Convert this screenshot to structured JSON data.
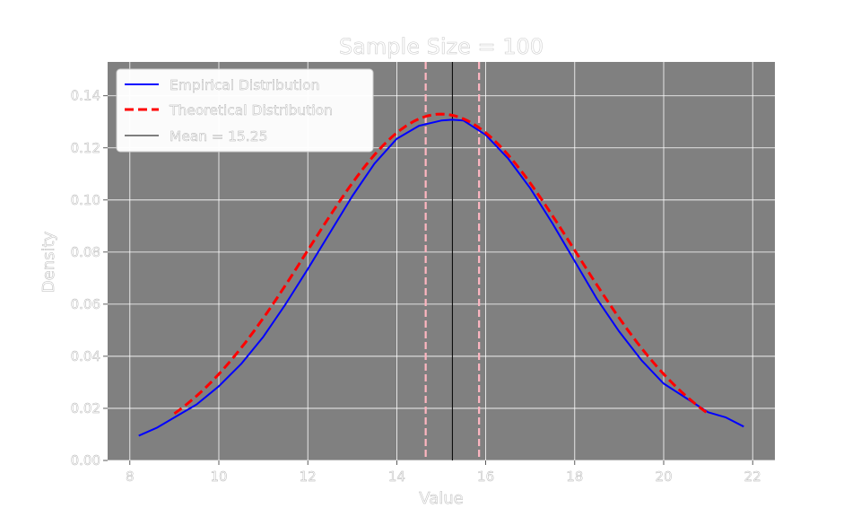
{
  "chart_data": {
    "type": "line",
    "title": "Sample Size = 100",
    "xlabel": "Value",
    "ylabel": "Density",
    "xlim": [
      7.5,
      22.5
    ],
    "ylim": [
      0.0,
      0.153
    ],
    "xticks": [
      8,
      10,
      12,
      14,
      16,
      18,
      20,
      22
    ],
    "xtick_labels": [
      "8",
      "10",
      "12",
      "14",
      "16",
      "18",
      "20",
      "22"
    ],
    "yticks": [
      0.0,
      0.02,
      0.04,
      0.06,
      0.08,
      0.1,
      0.12,
      0.14
    ],
    "ytick_labels": [
      "0.00",
      "0.02",
      "0.04",
      "0.06",
      "0.08",
      "0.10",
      "0.12",
      "0.14"
    ],
    "grid": true,
    "background_color": "#808080",
    "legend_position": "upper-left",
    "series": [
      {
        "name": "Empirical Distribution",
        "color": "#0000ff",
        "linestyle": "solid",
        "x": [
          8.2,
          8.6,
          9.0,
          9.5,
          10.0,
          10.5,
          11.0,
          11.5,
          12.0,
          12.5,
          13.0,
          13.5,
          14.0,
          14.5,
          15.0,
          15.25,
          15.5,
          16.0,
          16.5,
          17.0,
          17.5,
          18.0,
          18.5,
          19.0,
          19.5,
          20.0,
          20.5,
          21.0,
          21.4,
          21.8
        ],
        "y": [
          0.0095,
          0.0125,
          0.0165,
          0.0215,
          0.0285,
          0.037,
          0.0475,
          0.06,
          0.0735,
          0.0875,
          0.1015,
          0.114,
          0.1235,
          0.1285,
          0.1305,
          0.1308,
          0.1305,
          0.125,
          0.116,
          0.1045,
          0.091,
          0.0765,
          0.062,
          0.0495,
          0.0385,
          0.0295,
          0.024,
          0.0185,
          0.0165,
          0.013
        ]
      },
      {
        "name": "Theoretical Distribution",
        "color": "#ff0000",
        "linestyle": "dashed",
        "mean": 15.0,
        "std": 3.0,
        "x_range": [
          9.0,
          21.0
        ]
      },
      {
        "name": "Mean = 15.25",
        "color": "#000000",
        "linestyle": "solid",
        "vline_x": 15.25
      }
    ],
    "reference_lines": [
      {
        "x": 14.65,
        "color": "#ffb6c1",
        "linestyle": "dashed"
      },
      {
        "x": 15.85,
        "color": "#ffb6c1",
        "linestyle": "dashed"
      }
    ]
  }
}
